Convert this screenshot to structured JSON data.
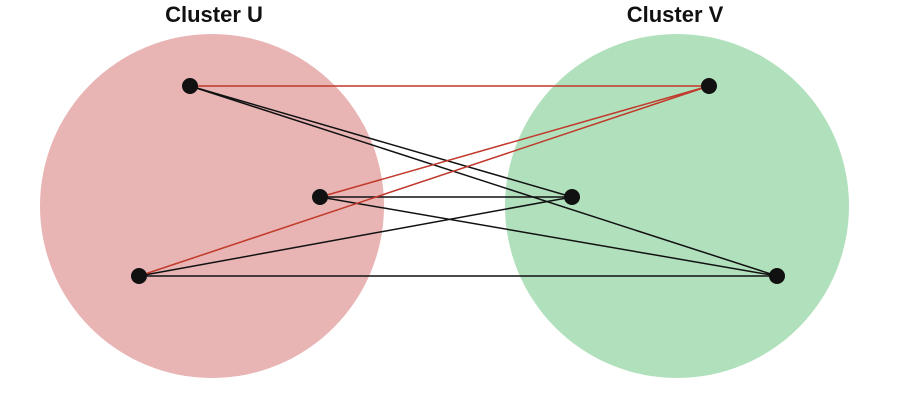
{
  "clusters": {
    "u": {
      "label": "Cluster U",
      "fill": "#e8b4b4"
    },
    "v": {
      "label": "Cluster V",
      "fill": "#b1e0bc"
    }
  },
  "colors": {
    "node": "#111111",
    "edge_default": "#111111",
    "edge_highlight": "#c0392b"
  },
  "nodes": [
    {
      "id": "u1",
      "cluster": "u"
    },
    {
      "id": "u2",
      "cluster": "u"
    },
    {
      "id": "u3",
      "cluster": "u"
    },
    {
      "id": "v1",
      "cluster": "v"
    },
    {
      "id": "v2",
      "cluster": "v"
    },
    {
      "id": "v3",
      "cluster": "v"
    }
  ],
  "edges": [
    {
      "from": "u1",
      "to": "v1",
      "highlight": true
    },
    {
      "from": "u1",
      "to": "v2",
      "highlight": false
    },
    {
      "from": "u1",
      "to": "v3",
      "highlight": false
    },
    {
      "from": "u2",
      "to": "v1",
      "highlight": true
    },
    {
      "from": "u2",
      "to": "v2",
      "highlight": false
    },
    {
      "from": "u2",
      "to": "v3",
      "highlight": false
    },
    {
      "from": "u3",
      "to": "v1",
      "highlight": true
    },
    {
      "from": "u3",
      "to": "v2",
      "highlight": false
    },
    {
      "from": "u3",
      "to": "v3",
      "highlight": false
    }
  ]
}
